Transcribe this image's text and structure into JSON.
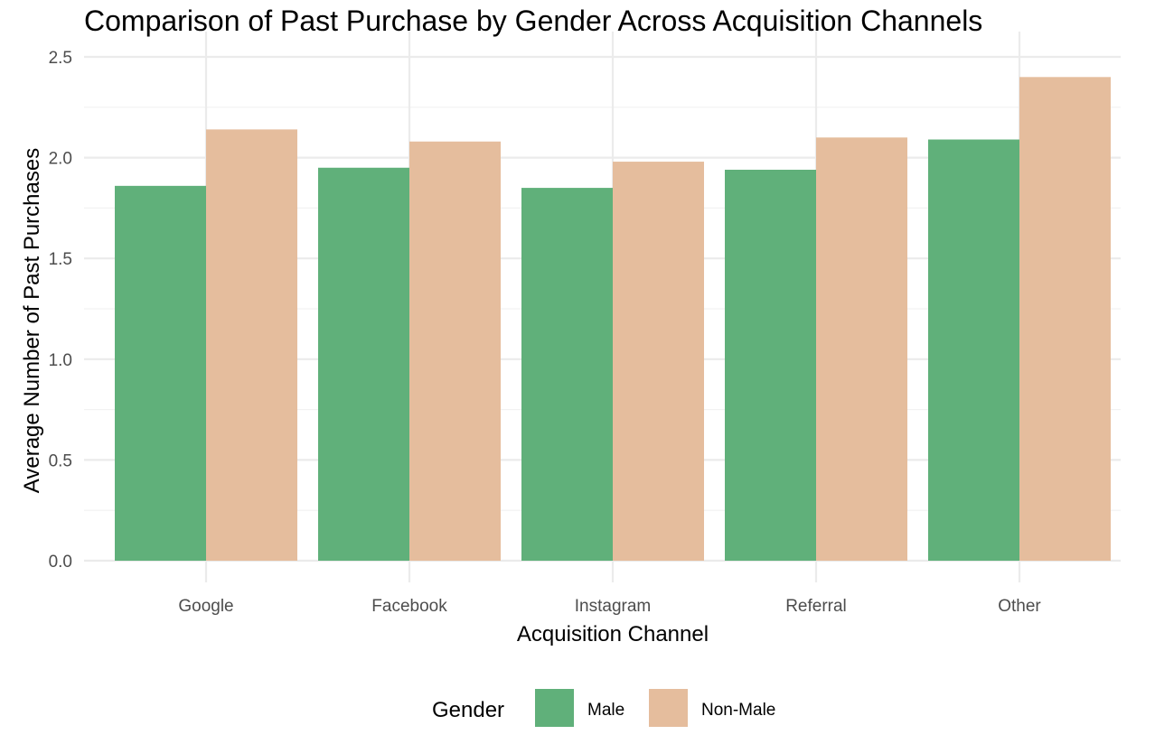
{
  "chart_data": {
    "type": "bar",
    "title": "Comparison of Past Purchase by Gender Across Acquisition Channels",
    "xlabel": "Acquisition Channel",
    "ylabel": "Average Number of Past Purchases",
    "categories": [
      "Google",
      "Facebook",
      "Instagram",
      "Referral",
      "Other"
    ],
    "series": [
      {
        "name": "Male",
        "color": "#60b07a",
        "values": [
          1.86,
          1.95,
          1.85,
          1.94,
          2.09
        ]
      },
      {
        "name": "Non-Male",
        "color": "#e5bd9d",
        "values": [
          2.14,
          2.08,
          1.98,
          2.1,
          2.4
        ]
      }
    ],
    "ylim": [
      0,
      2.5
    ],
    "yticks": [
      0,
      0.5,
      1,
      1.5,
      2,
      2.5
    ],
    "ytick_labels": [
      "0.0",
      "0.5",
      "1.0",
      "1.5",
      "2.0",
      "2.5"
    ],
    "grid": true,
    "legend": {
      "title": "Gender",
      "position": "bottom"
    }
  }
}
